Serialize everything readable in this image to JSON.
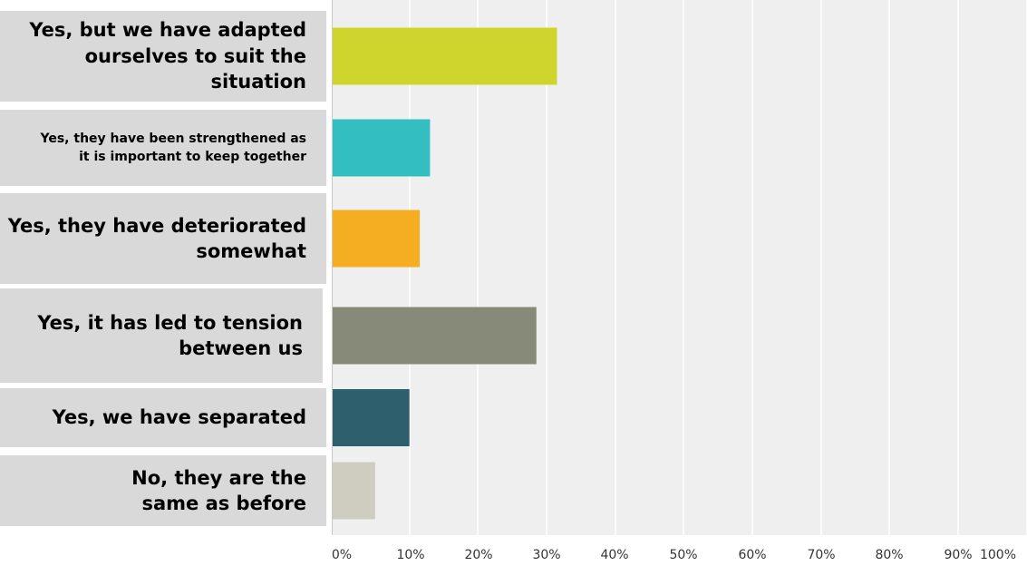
{
  "chart_data": {
    "type": "bar",
    "orientation": "horizontal",
    "categories": [
      "Yes, but we have adapted\nourselves to suit the situation",
      "Yes, they have been strengthened as\nit is important to keep together",
      "Yes, they have deteriorated\nsomewhat",
      "Yes, it has led to tension\nbetween us",
      "Yes, we have separated",
      "No, they are the\nsame as before"
    ],
    "values": [
      31.5,
      13,
      11.5,
      28.5,
      10,
      5
    ],
    "colors": [
      "#cfd52c",
      "#33bec1",
      "#f5ae22",
      "#878a78",
      "#2d5f6d",
      "#cfcdc0"
    ],
    "xlim": [
      0,
      100
    ],
    "xticks": [
      "0%",
      "10%",
      "20%",
      "30%",
      "40%",
      "50%",
      "60%",
      "70%",
      "80%",
      "90%",
      "100%"
    ],
    "grid": true,
    "plot_background": "#efefef",
    "label_background": "#d9d9d9",
    "gridline_color": "#ffffff"
  }
}
